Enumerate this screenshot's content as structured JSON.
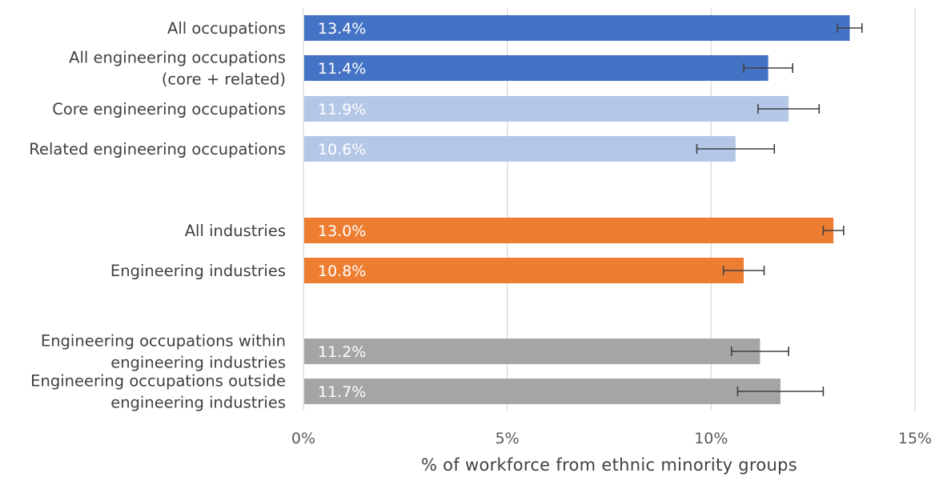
{
  "chart_data": {
    "type": "bar",
    "orientation": "horizontal",
    "xlabel": "% of workforce from ethnic minority groups",
    "ylabel": "",
    "xlim": [
      0,
      15
    ],
    "x_ticks": [
      0,
      5,
      10,
      15
    ],
    "x_tick_labels": [
      "0%",
      "5%",
      "10%",
      "15%"
    ],
    "grid": true,
    "legend": "none",
    "categories": [
      {
        "label": [
          "All occupations"
        ],
        "value": 13.4,
        "value_label": "13.4%",
        "error_low": 13.1,
        "error_high": 13.7,
        "color": "#4472c4"
      },
      {
        "label": [
          "All engineering occupations",
          "(core + related)"
        ],
        "value": 11.4,
        "value_label": "11.4%",
        "error_low": 10.8,
        "error_high": 12.0,
        "color": "#4472c4"
      },
      {
        "label": [
          "Core engineering occupations"
        ],
        "value": 11.9,
        "value_label": "11.9%",
        "error_low": 11.15,
        "error_high": 12.65,
        "color": "#b4c7e7"
      },
      {
        "label": [
          "Related engineering occupations"
        ],
        "value": 10.6,
        "value_label": "10.6%",
        "error_low": 9.65,
        "error_high": 11.55,
        "color": "#b4c7e7"
      },
      {
        "label": [
          "All industries"
        ],
        "value": 13.0,
        "value_label": "13.0%",
        "error_low": 12.75,
        "error_high": 13.25,
        "color": "#ed7d31"
      },
      {
        "label": [
          "Engineering industries"
        ],
        "value": 10.8,
        "value_label": "10.8%",
        "error_low": 10.3,
        "error_high": 11.3,
        "color": "#ed7d31"
      },
      {
        "label": [
          "Engineering occupations within",
          "engineering industries"
        ],
        "value": 11.2,
        "value_label": "11.2%",
        "error_low": 10.5,
        "error_high": 11.9,
        "color": "#a5a5a5"
      },
      {
        "label": [
          "Engineering occupations outside",
          "engineering industries"
        ],
        "value": 11.7,
        "value_label": "11.7%",
        "error_low": 10.65,
        "error_high": 12.75,
        "color": "#a5a5a5"
      }
    ]
  }
}
